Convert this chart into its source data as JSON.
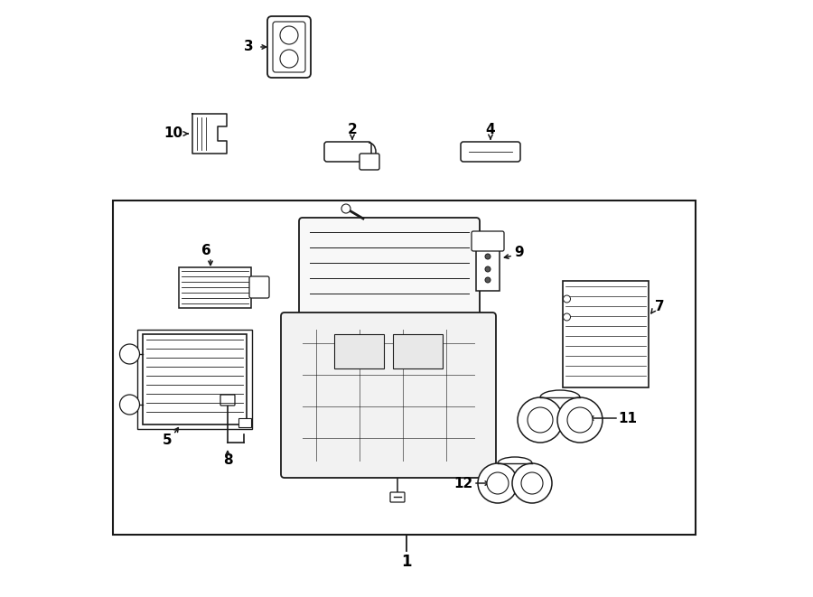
{
  "bg_color": "#ffffff",
  "line_color": "#1a1a1a",
  "text_color": "#000000",
  "fig_width": 9.0,
  "fig_height": 6.61,
  "dpi": 100
}
